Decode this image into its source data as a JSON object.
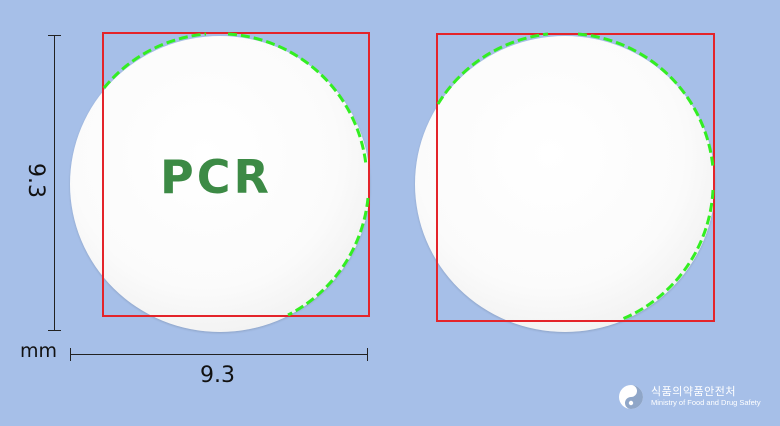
{
  "imprint": "PCR",
  "dimension_vertical": "9.3",
  "dimension_horizontal": "9.3",
  "unit": "mm",
  "logo": {
    "korean": "식품의약품안전처",
    "english": "Ministry of Food and Drug Safety"
  },
  "colors": {
    "background": "#a6bfe8",
    "pill": "#fafafa",
    "imprint": "#3c8a45",
    "bbox": "#e4242a",
    "outline": "#33ee22"
  }
}
